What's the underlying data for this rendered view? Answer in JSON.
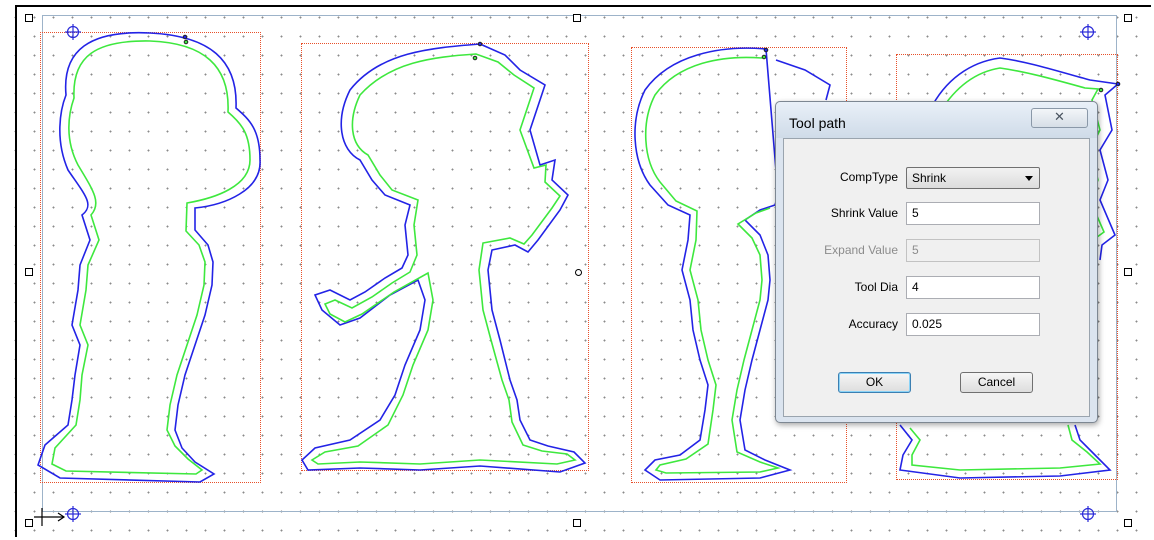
{
  "dialog": {
    "title": "Tool path",
    "close_label": "✕",
    "fields": {
      "comp_type": {
        "label": "CompType",
        "value": "Shrink"
      },
      "shrink_value": {
        "label": "Shrink Value",
        "value": "5"
      },
      "expand_value": {
        "label": "Expand Value",
        "value": "5",
        "disabled": true
      },
      "tool_dia": {
        "label": "Tool Dia",
        "value": "4"
      },
      "accuracy": {
        "label": "Accuracy",
        "value": "0.025"
      }
    },
    "ok_label": "OK",
    "cancel_label": "Cancel"
  },
  "colors": {
    "outer_path": "#2323e6",
    "inner_path": "#3ee83e",
    "selection": "#e8502a",
    "crosshair": "#2a2ad8"
  },
  "icons": [
    "selection-handle",
    "rotation-handle",
    "origin-crosshair-icon",
    "close-icon",
    "dropdown-arrow-icon"
  ]
}
